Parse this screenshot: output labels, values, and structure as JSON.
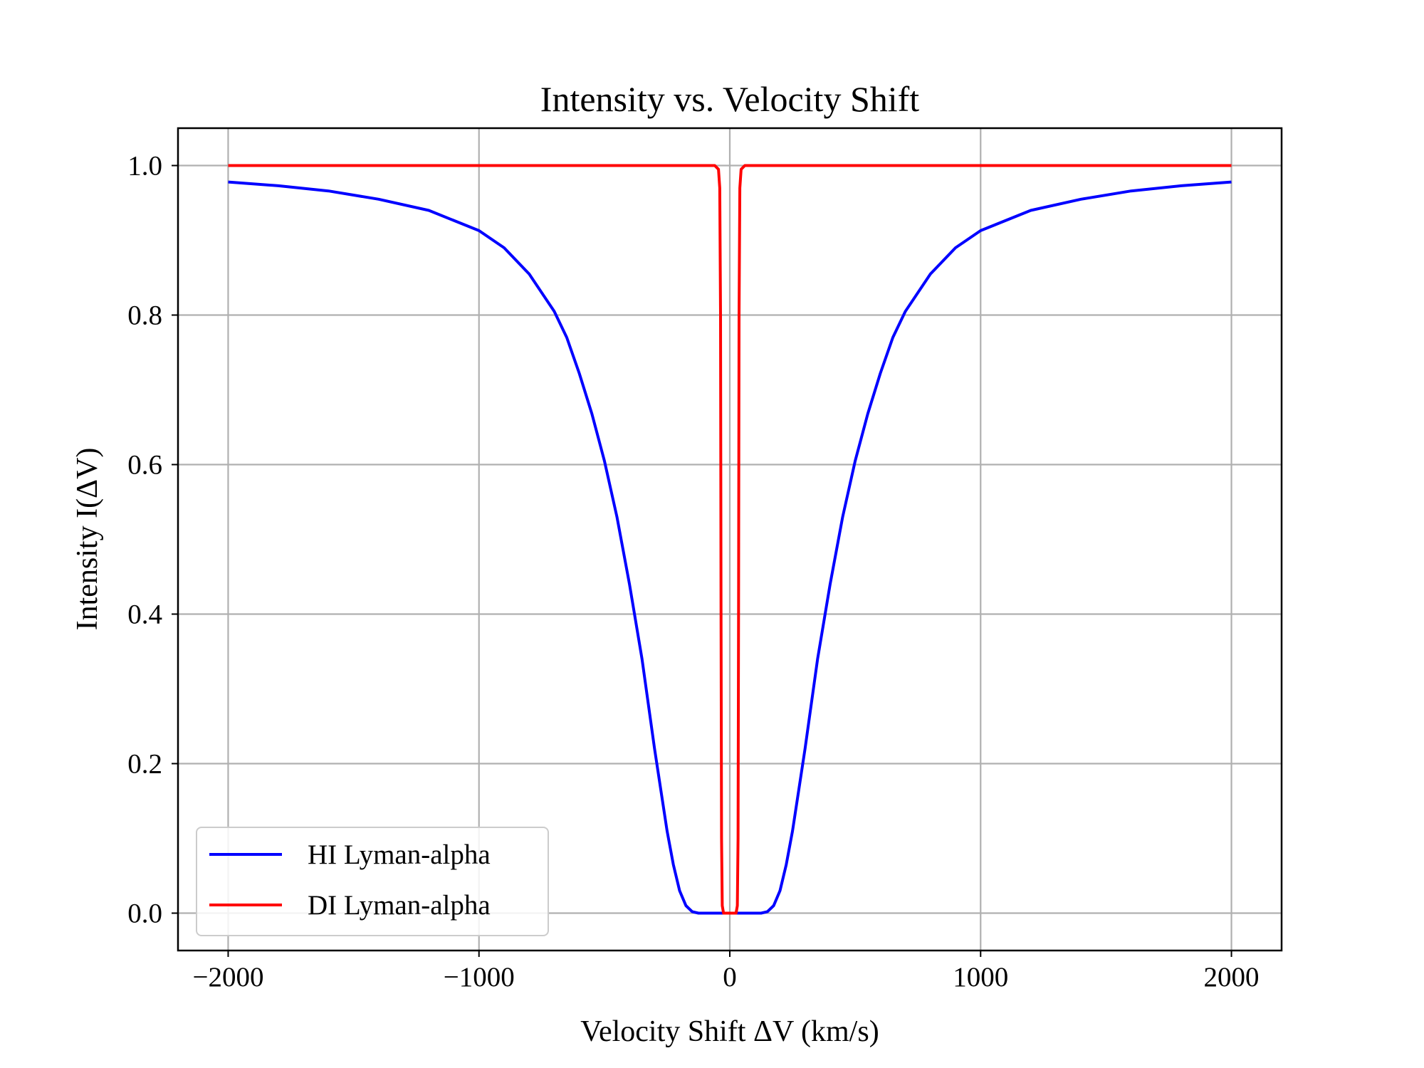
{
  "chart_data": {
    "type": "line",
    "title": "Intensity vs. Velocity Shift",
    "xlabel": "Velocity Shift ΔV (km/s)",
    "ylabel": "Intensity I(ΔV)",
    "xlim": [
      -2200,
      2200
    ],
    "ylim": [
      -0.05,
      1.05
    ],
    "xticks": [
      -2000,
      -1000,
      0,
      1000,
      2000
    ],
    "xtick_labels": [
      "−2000",
      "−1000",
      "0",
      "1000",
      "2000"
    ],
    "yticks": [
      0.0,
      0.2,
      0.4,
      0.6,
      0.8,
      1.0
    ],
    "ytick_labels": [
      "0.0",
      "0.2",
      "0.4",
      "0.6",
      "0.8",
      "1.0"
    ],
    "grid": true,
    "legend_position": "lower-left",
    "series": [
      {
        "name": "HI Lyman-alpha",
        "color": "#0000ff",
        "x": [
          -2000,
          -1800,
          -1600,
          -1400,
          -1200,
          -1000,
          -900,
          -800,
          -700,
          -650,
          -600,
          -550,
          -500,
          -450,
          -400,
          -350,
          -300,
          -275,
          -250,
          -225,
          -200,
          -175,
          -150,
          -125,
          -110,
          -100,
          0,
          100,
          110,
          125,
          150,
          175,
          200,
          225,
          250,
          275,
          300,
          350,
          400,
          450,
          500,
          550,
          600,
          650,
          700,
          800,
          900,
          1000,
          1200,
          1400,
          1600,
          1800,
          2000
        ],
        "y": [
          0.978,
          0.973,
          0.966,
          0.955,
          0.94,
          0.913,
          0.89,
          0.855,
          0.805,
          0.77,
          0.722,
          0.668,
          0.605,
          0.53,
          0.44,
          0.34,
          0.22,
          0.165,
          0.11,
          0.065,
          0.03,
          0.01,
          0.002,
          0.0,
          0.0,
          0.0,
          0.0,
          0.0,
          0.0,
          0.0,
          0.002,
          0.01,
          0.03,
          0.065,
          0.11,
          0.165,
          0.22,
          0.34,
          0.44,
          0.53,
          0.605,
          0.668,
          0.722,
          0.77,
          0.805,
          0.855,
          0.89,
          0.913,
          0.94,
          0.955,
          0.966,
          0.973,
          0.978
        ]
      },
      {
        "name": "DI Lyman-alpha",
        "color": "#ff0000",
        "x": [
          -2000,
          -60,
          -45,
          -40,
          -37,
          -35,
          -33,
          -30,
          -25,
          0,
          25,
          30,
          33,
          35,
          37,
          40,
          45,
          60,
          2000
        ],
        "y": [
          1.0,
          1.0,
          0.995,
          0.97,
          0.8,
          0.4,
          0.1,
          0.01,
          0.0,
          0.0,
          0.0,
          0.01,
          0.1,
          0.4,
          0.8,
          0.97,
          0.995,
          1.0,
          1.0
        ]
      }
    ]
  }
}
